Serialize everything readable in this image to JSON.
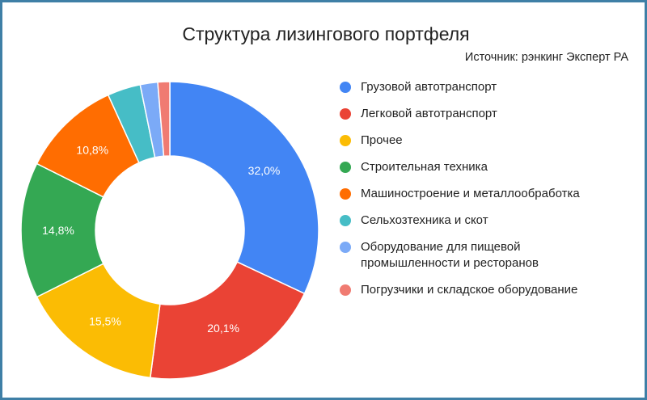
{
  "source": "Источник: рэнкинг Эксперт РА",
  "chart_data": {
    "type": "pie",
    "donut": true,
    "title": "Структура лизингового портфеля",
    "legend_position": "right",
    "slices": [
      {
        "name": "Грузовой автотранспорт",
        "value": 32.0,
        "label": "32,0%",
        "color": "#4285f4"
      },
      {
        "name": "Легковой автотранспорт",
        "value": 20.1,
        "label": "20,1%",
        "color": "#ea4335"
      },
      {
        "name": "Прочее",
        "value": 15.5,
        "label": "15,5%",
        "color": "#fbbc04"
      },
      {
        "name": "Строительная техника",
        "value": 14.8,
        "label": "14,8%",
        "color": "#34a853"
      },
      {
        "name": "Машиностроение и металлообработка",
        "value": 10.8,
        "label": "10,8%",
        "color": "#ff6d01"
      },
      {
        "name": "Сельхозтехника и скот",
        "value": 3.6,
        "label": "",
        "color": "#46bdc6"
      },
      {
        "name": "Оборудование для пищевой\nпромышленности и ресторанов",
        "value": 1.9,
        "label": "",
        "color": "#7baaf7"
      },
      {
        "name": "Погрузчики и складское оборудование",
        "value": 1.3,
        "label": "",
        "color": "#f07b72"
      }
    ]
  }
}
